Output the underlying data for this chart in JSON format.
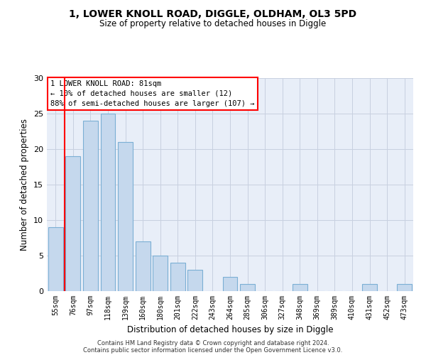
{
  "title1": "1, LOWER KNOLL ROAD, DIGGLE, OLDHAM, OL3 5PD",
  "title2": "Size of property relative to detached houses in Diggle",
  "xlabel": "Distribution of detached houses by size in Diggle",
  "ylabel": "Number of detached properties",
  "categories": [
    "55sqm",
    "76sqm",
    "97sqm",
    "118sqm",
    "139sqm",
    "160sqm",
    "180sqm",
    "201sqm",
    "222sqm",
    "243sqm",
    "264sqm",
    "285sqm",
    "306sqm",
    "327sqm",
    "348sqm",
    "369sqm",
    "389sqm",
    "410sqm",
    "431sqm",
    "452sqm",
    "473sqm"
  ],
  "values": [
    9,
    19,
    24,
    25,
    21,
    7,
    5,
    4,
    3,
    0,
    2,
    1,
    0,
    0,
    1,
    0,
    0,
    0,
    1,
    0,
    1
  ],
  "bar_color": "#c5d8ed",
  "bar_edge_color": "#7bafd4",
  "vline_x": 0.5,
  "annotation_box_text": "1 LOWER KNOLL ROAD: 81sqm\n← 10% of detached houses are smaller (12)\n88% of semi-detached houses are larger (107) →",
  "ylim": [
    0,
    30
  ],
  "yticks": [
    0,
    5,
    10,
    15,
    20,
    25,
    30
  ],
  "axes_bg_color": "#e8eef8",
  "background_color": "#ffffff",
  "grid_color": "#c8d0e0",
  "footer1": "Contains HM Land Registry data © Crown copyright and database right 2024.",
  "footer2": "Contains public sector information licensed under the Open Government Licence v3.0."
}
